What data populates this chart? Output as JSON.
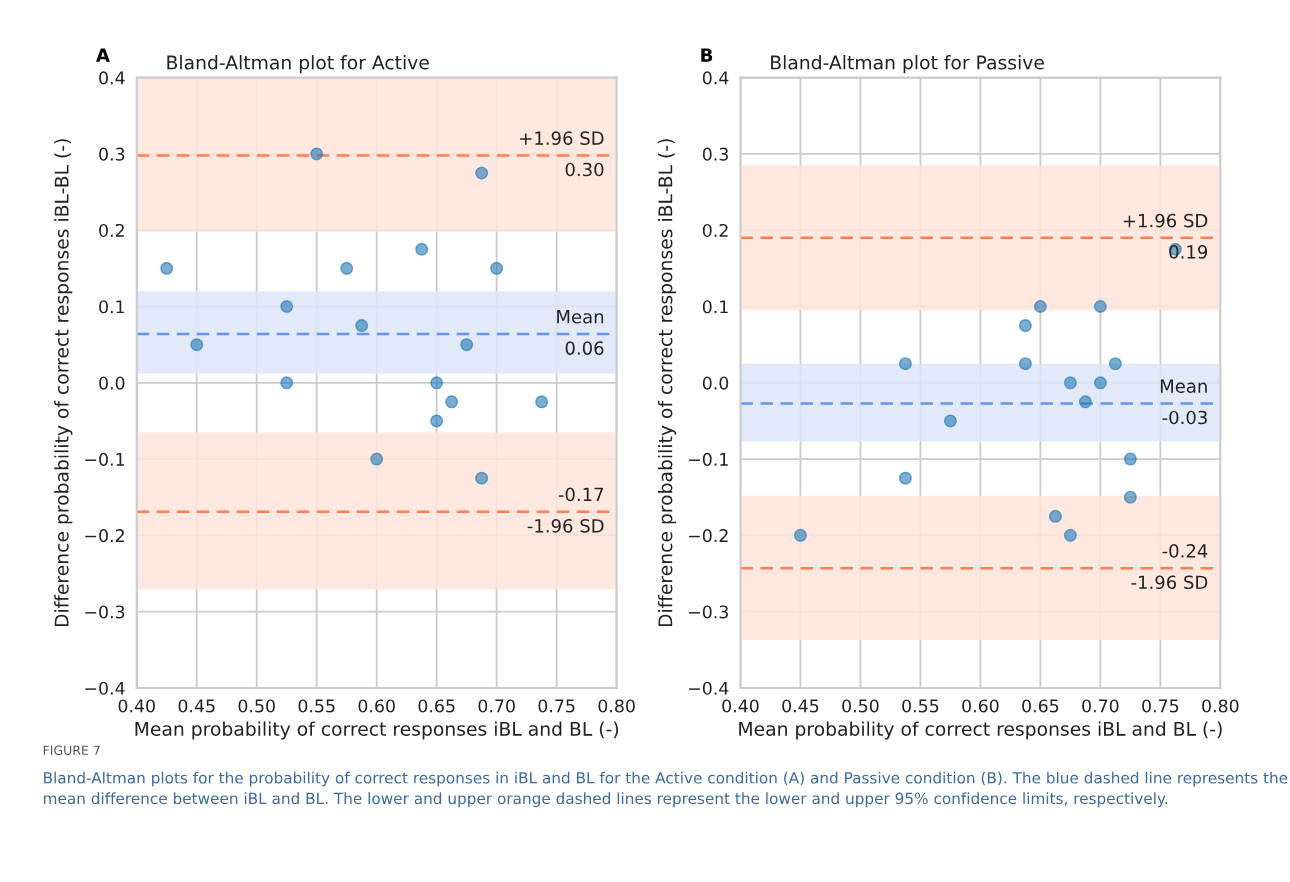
{
  "chart_data": [
    {
      "type": "scatter",
      "title": "Bland-Altman plot for Active",
      "xlabel": "Mean probability of correct responses iBL and BL (-)",
      "ylabel": "Difference probability of correct responses iBL-BL (-)",
      "series": [
        {
          "color": "#1f77b4",
          "x": [
            0.425,
            0.45,
            0.525,
            0.525,
            0.55,
            0.575,
            0.5875,
            0.6,
            0.6375,
            0.65,
            0.65,
            0.6625,
            0.675,
            0.6875,
            0.6875,
            0.7,
            0.7375
          ],
          "values": [
            0.15,
            0.05,
            0.1,
            0.0,
            0.3,
            0.15,
            0.075,
            -0.1,
            0.175,
            0.0,
            -0.05,
            -0.025,
            0.05,
            0.275,
            -0.125,
            0.15,
            -0.025
          ]
        }
      ],
      "marker": "circle",
      "grid": true,
      "xlim": [
        0.4,
        0.8
      ],
      "xticks": [
        {
          "value": 0.4,
          "label": "0.40"
        },
        {
          "value": 0.45,
          "label": "0.45"
        },
        {
          "value": 0.5,
          "label": "0.50"
        },
        {
          "value": 0.55,
          "label": "0.55"
        },
        {
          "value": 0.6,
          "label": "0.60"
        },
        {
          "value": 0.65,
          "label": "0.65"
        },
        {
          "value": 0.7,
          "label": "0.70"
        },
        {
          "value": 0.75,
          "label": "0.75"
        },
        {
          "value": 0.8,
          "label": "0.80"
        }
      ],
      "ylim": [
        -0.4,
        0.4
      ],
      "yticks": [
        {
          "value": -0.4,
          "label": "−0.4"
        },
        {
          "value": -0.3,
          "label": "−0.3"
        },
        {
          "value": -0.2,
          "label": "−0.2"
        },
        {
          "value": -0.1,
          "label": "−0.1"
        },
        {
          "value": 0,
          "label": "0.0"
        },
        0.1,
        0.2,
        0.3,
        0.4
      ],
      "ref_lines": [
        {
          "axis": "y",
          "value": 0.298,
          "label": "+1.96 SD",
          "color": "#ff7f50",
          "line_style": "dashed"
        },
        {
          "axis": "y",
          "value": 0.064,
          "label": "Mean",
          "color": "#6495ed",
          "line_style": "dashed"
        },
        {
          "axis": "y",
          "value": -0.169,
          "label": "-1.96 SD",
          "color": "#ff7f50",
          "line_style": "dashed"
        }
      ],
      "bands": [
        {
          "axis": "y",
          "from": 0.198,
          "to": 0.4,
          "color": "#ffe4da"
        },
        {
          "axis": "y",
          "from": 0.012,
          "to": 0.12,
          "color": "#dde6f8"
        },
        {
          "axis": "y",
          "from": -0.271,
          "to": -0.065,
          "color": "#ffe4da"
        }
      ],
      "annotations": [
        "A",
        {
          "text": "0.30",
          "y": 0.298
        },
        {
          "text": "0.06",
          "y": 0.064
        },
        {
          "text": "-0.17",
          "y": -0.169
        },
        "FIGURE 7",
        "Bland-Altman plots for the probability of correct responses in iBL and BL for the Active condition (A) and Passive condition (B). The blue dashed line represents the mean difference between iBL and BL. The lower and upper orange dashed lines represent the lower and upper 95% confidence limits, respectively."
      ]
    },
    {
      "type": "scatter",
      "title": "Bland-Altman plot for Passive",
      "xlabel": "Mean probability of correct responses iBL and BL (-)",
      "ylabel": "Difference probability of correct responses iBL-BL (-)",
      "series": [
        {
          "color": "#1f77b4",
          "x": [
            0.45,
            0.5375,
            0.5375,
            0.575,
            0.6375,
            0.6375,
            0.65,
            0.6625,
            0.675,
            0.675,
            0.6875,
            0.7,
            0.7,
            0.7125,
            0.725,
            0.725,
            0.7625
          ],
          "values": [
            -0.2,
            0.025,
            -0.125,
            -0.05,
            0.075,
            0.025,
            0.1,
            -0.175,
            0.0,
            -0.2,
            -0.025,
            0.1,
            0.0,
            0.025,
            -0.1,
            -0.15,
            0.175
          ]
        }
      ],
      "marker": "circle",
      "grid": true,
      "xlim": [
        0.4,
        0.8
      ],
      "xticks": [
        {
          "value": 0.4,
          "label": "0.40"
        },
        {
          "value": 0.45,
          "label": "0.45"
        },
        {
          "value": 0.5,
          "label": "0.50"
        },
        {
          "value": 0.55,
          "label": "0.55"
        },
        {
          "value": 0.6,
          "label": "0.60"
        },
        {
          "value": 0.65,
          "label": "0.65"
        },
        {
          "value": 0.7,
          "label": "0.70"
        },
        {
          "value": 0.75,
          "label": "0.75"
        },
        {
          "value": 0.8,
          "label": "0.80"
        }
      ],
      "ylim": [
        -0.4,
        0.4
      ],
      "yticks": [
        {
          "value": -0.4,
          "label": "−0.4"
        },
        {
          "value": -0.3,
          "label": "−0.3"
        },
        {
          "value": -0.2,
          "label": "−0.2"
        },
        {
          "value": -0.1,
          "label": "−0.1"
        },
        {
          "value": 0,
          "label": "0.0"
        },
        0.1,
        0.2,
        0.3,
        0.4
      ],
      "ref_lines": [
        {
          "axis": "y",
          "value": 0.19,
          "label": "+1.96 SD",
          "color": "#ff7f50",
          "line_style": "dashed"
        },
        {
          "axis": "y",
          "value": -0.027,
          "label": "Mean",
          "color": "#6495ed",
          "line_style": "dashed"
        },
        {
          "axis": "y",
          "value": -0.243,
          "label": "-1.96 SD",
          "color": "#ff7f50",
          "line_style": "dashed"
        }
      ],
      "bands": [
        {
          "axis": "y",
          "from": 0.095,
          "to": 0.285,
          "color": "#ffe4da"
        },
        {
          "axis": "y",
          "from": -0.077,
          "to": 0.025,
          "color": "#dde6f8"
        },
        {
          "axis": "y",
          "from": -0.337,
          "to": -0.148,
          "color": "#ffe4da"
        }
      ],
      "annotations": [
        "B",
        {
          "text": "0.19",
          "y": 0.19
        },
        {
          "text": "-0.03",
          "y": -0.027
        },
        {
          "text": "-0.24",
          "y": -0.243
        }
      ]
    }
  ]
}
